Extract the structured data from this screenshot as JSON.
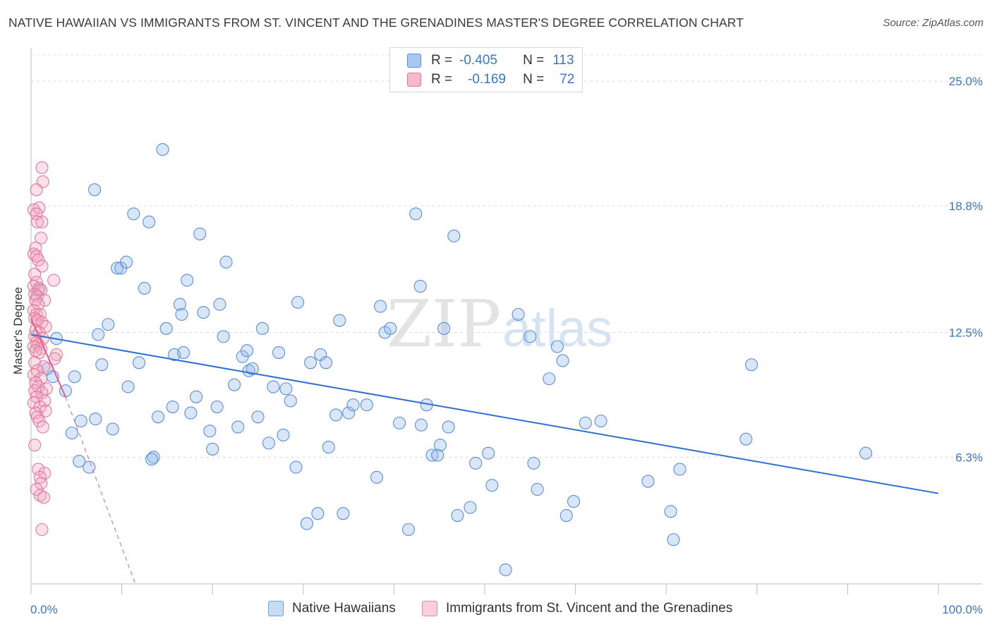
{
  "title": "NATIVE HAWAIIAN VS IMMIGRANTS FROM ST. VINCENT AND THE GRENADINES MASTER'S DEGREE CORRELATION CHART",
  "source": "Source: ZipAtlas.com",
  "watermark_zip": "ZIP",
  "watermark_atlas": "atlas",
  "legend": {
    "r_label": "R =",
    "n_label": "N =",
    "rows": [
      {
        "r": "-0.405",
        "n": "113",
        "color": "#a9c8ef",
        "border": "#5b8fd8"
      },
      {
        "r": "-0.169",
        "n": "72",
        "color": "#f7b8cb",
        "border": "#e07a9c"
      }
    ]
  },
  "bottom_legend": [
    {
      "label": "Native Hawaiians",
      "color": "#c6dcf6",
      "border": "#6f9fde"
    },
    {
      "label": "Immigrants from St. Vincent and the Grenadines",
      "color": "#fbd0dc",
      "border": "#e58aa6"
    }
  ],
  "chart_data": {
    "type": "scatter",
    "title": "NATIVE HAWAIIAN VS IMMIGRANTS FROM ST. VINCENT AND THE GRENADINES MASTER'S DEGREE CORRELATION CHART",
    "xlabel": "",
    "ylabel": "Master's Degree",
    "xlim": [
      0,
      100
    ],
    "ylim": [
      0,
      26.3
    ],
    "y_tick_labels": [
      "6.3%",
      "12.5%",
      "18.8%",
      "25.0%"
    ],
    "y_tick_values": [
      6.3,
      12.5,
      18.8,
      25.0
    ],
    "x_tick_labels": [
      "0.0%",
      "100.0%"
    ],
    "x_tick_values": [
      0,
      100
    ],
    "grid": true,
    "series": [
      {
        "name": "Native Hawaiians",
        "color": "#8fb6ea",
        "stroke": "#5b8fd8",
        "trend": {
          "x": [
            0,
            100
          ],
          "y": [
            12.4,
            4.5
          ],
          "color": "#2f6fcf"
        },
        "points": [
          [
            0.8,
            14.6
          ],
          [
            2.8,
            12.2
          ],
          [
            1.8,
            10.7
          ],
          [
            2.4,
            10.3
          ],
          [
            4.8,
            10.3
          ],
          [
            3.8,
            9.6
          ],
          [
            4.5,
            7.5
          ],
          [
            5.5,
            8.1
          ],
          [
            5.3,
            6.1
          ],
          [
            6.4,
            5.8
          ],
          [
            7.1,
            8.2
          ],
          [
            7.0,
            19.6
          ],
          [
            7.4,
            12.4
          ],
          [
            7.8,
            10.9
          ],
          [
            8.5,
            12.9
          ],
          [
            9.0,
            7.7
          ],
          [
            9.5,
            15.7
          ],
          [
            9.9,
            15.7
          ],
          [
            10.5,
            16.0
          ],
          [
            10.7,
            9.8
          ],
          [
            11.3,
            18.4
          ],
          [
            11.9,
            11.0
          ],
          [
            12.5,
            14.7
          ],
          [
            13.0,
            18.0
          ],
          [
            13.5,
            6.3
          ],
          [
            14.0,
            8.3
          ],
          [
            14.5,
            21.6
          ],
          [
            14.9,
            12.7
          ],
          [
            15.6,
            8.8
          ],
          [
            15.8,
            11.4
          ],
          [
            16.4,
            13.9
          ],
          [
            16.6,
            13.4
          ],
          [
            17.2,
            15.1
          ],
          [
            17.6,
            8.5
          ],
          [
            18.2,
            9.3
          ],
          [
            18.6,
            17.4
          ],
          [
            19.0,
            13.5
          ],
          [
            19.7,
            7.6
          ],
          [
            20.5,
            8.8
          ],
          [
            20.8,
            13.9
          ],
          [
            21.2,
            12.3
          ],
          [
            21.5,
            16.0
          ],
          [
            22.4,
            9.9
          ],
          [
            22.8,
            7.8
          ],
          [
            23.3,
            11.3
          ],
          [
            23.8,
            11.6
          ],
          [
            24.0,
            10.6
          ],
          [
            24.4,
            10.7
          ],
          [
            25.0,
            8.3
          ],
          [
            25.5,
            12.7
          ],
          [
            26.2,
            7.0
          ],
          [
            26.7,
            9.8
          ],
          [
            27.3,
            11.5
          ],
          [
            27.8,
            7.4
          ],
          [
            28.1,
            9.7
          ],
          [
            28.6,
            9.1
          ],
          [
            29.2,
            5.8
          ],
          [
            29.4,
            14.0
          ],
          [
            30.4,
            3.0
          ],
          [
            30.8,
            11.0
          ],
          [
            31.6,
            3.5
          ],
          [
            31.9,
            11.4
          ],
          [
            32.5,
            11.0
          ],
          [
            32.8,
            6.8
          ],
          [
            33.6,
            8.4
          ],
          [
            34.0,
            13.1
          ],
          [
            34.4,
            3.5
          ],
          [
            35.0,
            8.5
          ],
          [
            35.5,
            8.9
          ],
          [
            37.0,
            8.9
          ],
          [
            38.1,
            5.3
          ],
          [
            38.5,
            13.8
          ],
          [
            39.0,
            12.5
          ],
          [
            39.6,
            12.7
          ],
          [
            40.6,
            8.0
          ],
          [
            41.6,
            2.7
          ],
          [
            42.4,
            18.4
          ],
          [
            42.9,
            14.8
          ],
          [
            43.0,
            7.9
          ],
          [
            43.6,
            8.9
          ],
          [
            44.2,
            6.4
          ],
          [
            44.8,
            6.4
          ],
          [
            45.1,
            6.9
          ],
          [
            45.5,
            12.7
          ],
          [
            46.0,
            7.8
          ],
          [
            46.6,
            17.3
          ],
          [
            47.0,
            3.4
          ],
          [
            48.4,
            3.8
          ],
          [
            49.0,
            6.0
          ],
          [
            50.4,
            6.5
          ],
          [
            50.8,
            4.9
          ],
          [
            52.3,
            0.7
          ],
          [
            53.7,
            13.4
          ],
          [
            55.0,
            12.3
          ],
          [
            55.4,
            6.0
          ],
          [
            55.8,
            4.7
          ],
          [
            57.1,
            10.2
          ],
          [
            58.0,
            11.8
          ],
          [
            58.6,
            11.1
          ],
          [
            59.0,
            3.4
          ],
          [
            59.8,
            4.1
          ],
          [
            61.1,
            8.0
          ],
          [
            62.8,
            8.1
          ],
          [
            68.0,
            5.1
          ],
          [
            70.5,
            3.6
          ],
          [
            70.8,
            2.2
          ],
          [
            71.5,
            5.7
          ],
          [
            78.8,
            7.2
          ],
          [
            79.4,
            10.9
          ],
          [
            92.0,
            6.5
          ],
          [
            13.3,
            6.2
          ],
          [
            16.8,
            11.5
          ],
          [
            20.0,
            6.7
          ]
        ]
      },
      {
        "name": "Immigrants from St. Vincent and the Grenadines",
        "color": "#f4a7bf",
        "stroke": "#e07a9c",
        "trend": {
          "x": [
            0,
            3.8
          ],
          "y": [
            13.2,
            9.3
          ],
          "dash_x": [
            3.8,
            11.5
          ],
          "dash_y": [
            9.3,
            0.0
          ],
          "color": "#e0608a"
        },
        "points": [
          [
            1.2,
            20.7
          ],
          [
            1.3,
            20.0
          ],
          [
            0.6,
            19.6
          ],
          [
            0.3,
            18.6
          ],
          [
            0.9,
            18.7
          ],
          [
            0.6,
            18.4
          ],
          [
            0.7,
            18.0
          ],
          [
            1.2,
            18.0
          ],
          [
            1.1,
            17.2
          ],
          [
            0.5,
            16.7
          ],
          [
            0.3,
            16.4
          ],
          [
            0.6,
            16.3
          ],
          [
            0.8,
            16.1
          ],
          [
            1.2,
            15.8
          ],
          [
            0.4,
            15.4
          ],
          [
            2.5,
            15.1
          ],
          [
            0.6,
            15.0
          ],
          [
            0.3,
            14.8
          ],
          [
            0.9,
            14.7
          ],
          [
            1.1,
            14.6
          ],
          [
            0.4,
            14.4
          ],
          [
            0.7,
            14.3
          ],
          [
            1.5,
            14.1
          ],
          [
            0.5,
            14.1
          ],
          [
            0.8,
            13.9
          ],
          [
            0.3,
            13.6
          ],
          [
            0.6,
            13.4
          ],
          [
            1.0,
            13.4
          ],
          [
            0.4,
            13.2
          ],
          [
            0.7,
            13.1
          ],
          [
            1.2,
            13.0
          ],
          [
            1.6,
            12.8
          ],
          [
            0.5,
            12.6
          ],
          [
            0.9,
            12.5
          ],
          [
            0.4,
            12.3
          ],
          [
            1.3,
            12.2
          ],
          [
            0.6,
            12.0
          ],
          [
            0.8,
            11.9
          ],
          [
            0.3,
            11.8
          ],
          [
            1.1,
            11.7
          ],
          [
            0.5,
            11.6
          ],
          [
            0.9,
            11.5
          ],
          [
            2.8,
            11.4
          ],
          [
            2.6,
            11.2
          ],
          [
            0.4,
            11.0
          ],
          [
            1.4,
            10.8
          ],
          [
            0.7,
            10.6
          ],
          [
            0.3,
            10.4
          ],
          [
            1.1,
            10.2
          ],
          [
            0.5,
            10.0
          ],
          [
            0.8,
            9.8
          ],
          [
            1.7,
            9.7
          ],
          [
            0.4,
            9.6
          ],
          [
            1.2,
            9.5
          ],
          [
            0.6,
            9.3
          ],
          [
            1.5,
            9.1
          ],
          [
            0.3,
            9.0
          ],
          [
            1.0,
            8.8
          ],
          [
            1.6,
            8.6
          ],
          [
            0.5,
            8.5
          ],
          [
            0.7,
            8.3
          ],
          [
            0.9,
            8.1
          ],
          [
            1.3,
            7.8
          ],
          [
            0.4,
            6.9
          ],
          [
            0.8,
            5.7
          ],
          [
            1.5,
            5.5
          ],
          [
            1.0,
            5.3
          ],
          [
            1.1,
            5.0
          ],
          [
            0.6,
            4.7
          ],
          [
            1.0,
            4.4
          ],
          [
            1.4,
            4.3
          ],
          [
            1.2,
            2.7
          ]
        ]
      }
    ]
  }
}
